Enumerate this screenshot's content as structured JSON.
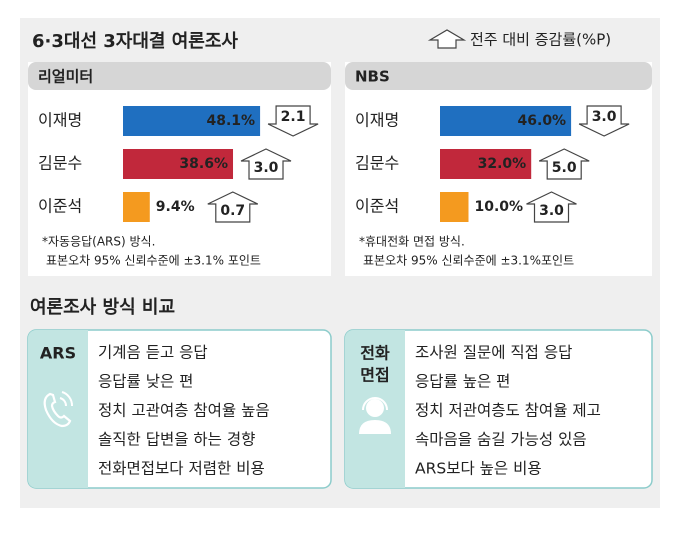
{
  "title": "6·3대선 3자대결 여론조사",
  "legend": "전주 대비 증감률(%P)",
  "chart_data": [
    {
      "type": "bar",
      "title": "리얼미터",
      "categories": [
        "이재명",
        "김문수",
        "이준석"
      ],
      "values": [
        48.1,
        38.6,
        9.4
      ],
      "value_labels": [
        "48.1%",
        "38.6%",
        "9.4%"
      ],
      "colors": [
        "#1f6fc0",
        "#c1283b",
        "#f49a1f"
      ],
      "changes": [
        -2.1,
        3.0,
        0.7
      ],
      "change_labels": [
        "2.1",
        "3.0",
        "0.7"
      ],
      "notes": [
        "*자동응답(ARS) 방식.",
        "표본오차 95% 신뢰수준에 ±3.1% 포인트"
      ]
    },
    {
      "type": "bar",
      "title": "NBS",
      "categories": [
        "이재명",
        "김문수",
        "이준석"
      ],
      "values": [
        46.0,
        32.0,
        10.0
      ],
      "value_labels": [
        "46.0%",
        "32.0%",
        "10.0%"
      ],
      "colors": [
        "#1f6fc0",
        "#c1283b",
        "#f49a1f"
      ],
      "changes": [
        -3.0,
        5.0,
        3.0
      ],
      "change_labels": [
        "3.0",
        "5.0",
        "3.0"
      ],
      "notes": [
        "*휴대전화 면접 방식.",
        "표본오차 95% 신뢰수준에 ±3.1%포인트"
      ]
    }
  ],
  "comparison": {
    "title": "여론조사 방식 비교",
    "panels": [
      {
        "label_lines": [
          "ARS"
        ],
        "items": [
          "기계음 듣고 응답",
          "응답률 낮은 편",
          "정치 고관여층 참여율 높음",
          "솔직한 답변을 하는 경향",
          "전화면접보다 저렴한 비용"
        ]
      },
      {
        "label_lines": [
          "전화",
          "면접"
        ],
        "items": [
          "조사원 질문에 직접 응답",
          "응답률 높은 편",
          "정치 저관여층도 참여율 제고",
          "속마음을 숨길 가능성 있음",
          "ARS보다 높은 비용"
        ]
      }
    ]
  }
}
